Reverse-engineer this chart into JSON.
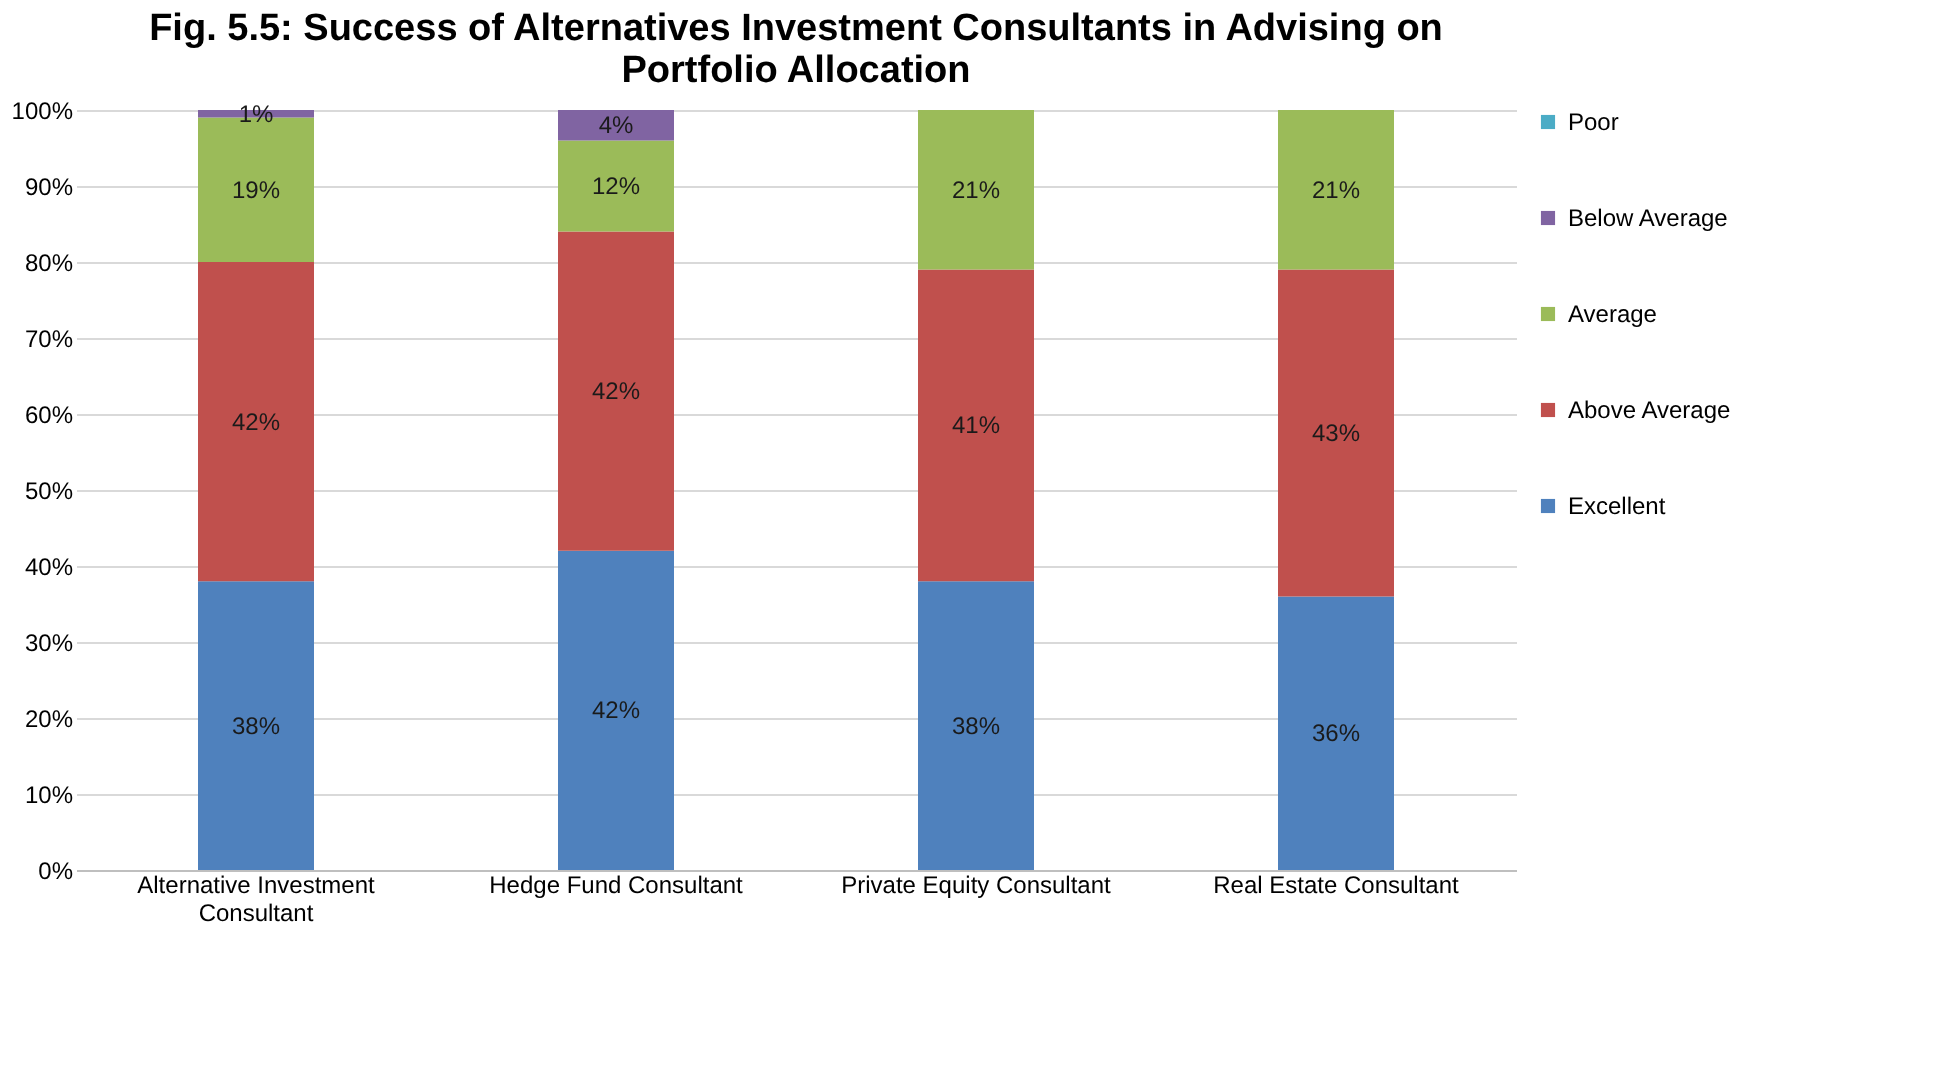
{
  "chart_data": {
    "type": "bar",
    "title": "Fig. 5.5: Success of Alternatives Investment Consultants in Advising on Portfolio Allocation",
    "categories": [
      "Alternative Investment Consultant",
      "Hedge Fund Consultant",
      "Private Equity Consultant",
      "Real Estate Consultant"
    ],
    "stacked": true,
    "series": [
      {
        "name": "Excellent",
        "color": "#4f81bd",
        "values": [
          38,
          42,
          38,
          36
        ],
        "value_labels": [
          "38%",
          "42%",
          "38%",
          "36%"
        ]
      },
      {
        "name": "Above Average",
        "color": "#c0504d",
        "values": [
          42,
          42,
          41,
          43
        ],
        "value_labels": [
          "42%",
          "42%",
          "41%",
          "43%"
        ]
      },
      {
        "name": "Average",
        "color": "#9bbb59",
        "values": [
          19,
          12,
          21,
          21
        ],
        "value_labels": [
          "19%",
          "12%",
          "21%",
          "21%"
        ]
      },
      {
        "name": "Below Average",
        "color": "#8064a2",
        "values": [
          1,
          4,
          0,
          0
        ],
        "value_labels": [
          "1%",
          "4%",
          null,
          null
        ]
      },
      {
        "name": "Poor",
        "color": "#4bacc6",
        "values": [
          0,
          0,
          0,
          0
        ],
        "value_labels": [
          null,
          null,
          null,
          null
        ]
      }
    ],
    "ylim": [
      0,
      100
    ],
    "yticks": [
      {
        "value": 0,
        "label": "0%"
      },
      {
        "value": 10,
        "label": "10%"
      },
      {
        "value": 20,
        "label": "20%"
      },
      {
        "value": 30,
        "label": "30%"
      },
      {
        "value": 40,
        "label": "40%"
      },
      {
        "value": 50,
        "label": "50%"
      },
      {
        "value": 60,
        "label": "60%"
      },
      {
        "value": 70,
        "label": "70%"
      },
      {
        "value": 80,
        "label": "80%"
      },
      {
        "value": 90,
        "label": "90%"
      },
      {
        "value": 100,
        "label": "100%"
      }
    ],
    "grid": "y",
    "legend": "right"
  }
}
